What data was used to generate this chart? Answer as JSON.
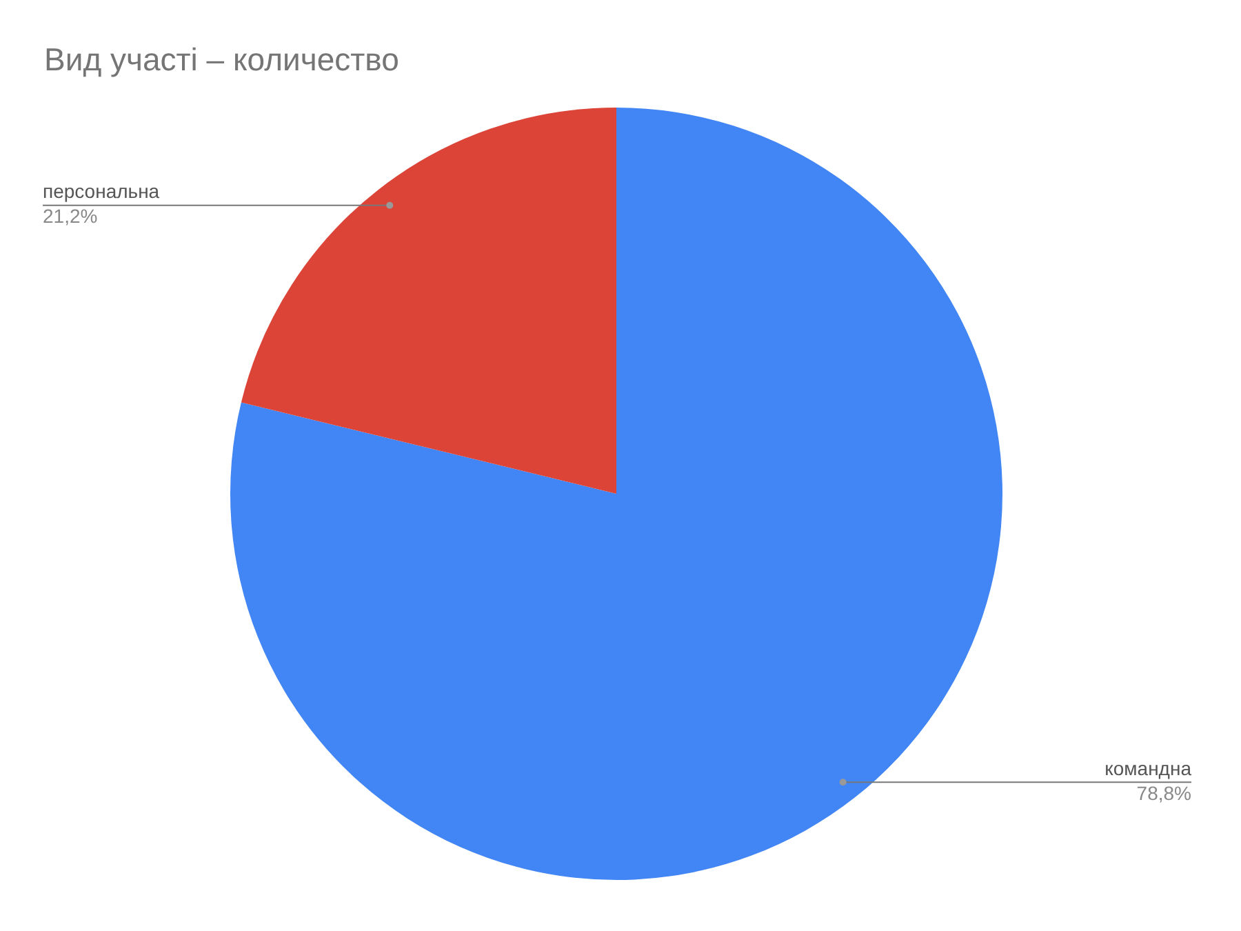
{
  "chart_data": {
    "type": "pie",
    "title": "Вид участі – количество",
    "categories": [
      "командна",
      "персональна"
    ],
    "values": [
      78.8,
      21.2
    ],
    "colors": [
      "#4285f4",
      "#db4437"
    ],
    "value_labels": [
      "78,8%",
      "21,2%"
    ],
    "legend": false
  }
}
